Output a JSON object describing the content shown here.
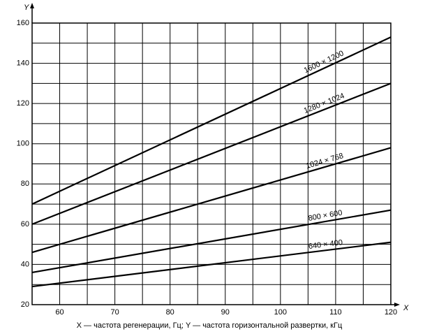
{
  "chart_data": {
    "type": "line",
    "x_axis_label": "X",
    "y_axis_label": "Y",
    "caption": "X — частота регенерации, Гц; Y — частота горизонтальной развертки, кГц",
    "x": [
      55,
      120
    ],
    "series": [
      {
        "name": "1600 × 1200",
        "color": "#000000",
        "values": [
          70,
          153
        ]
      },
      {
        "name": "1280 × 1024",
        "color": "#000000",
        "values": [
          60,
          130
        ]
      },
      {
        "name": "1024 × 768",
        "color": "#000000",
        "values": [
          46,
          98
        ]
      },
      {
        "name": "800 × 600",
        "color": "#000000",
        "values": [
          36,
          67
        ]
      },
      {
        "name": "640 × 400",
        "color": "#000000",
        "values": [
          29,
          51
        ]
      }
    ],
    "xlim": [
      55,
      120
    ],
    "ylim": [
      20,
      160
    ],
    "xticks": [
      60,
      70,
      80,
      90,
      100,
      110,
      120
    ],
    "yticks": [
      20,
      40,
      60,
      80,
      100,
      120,
      140,
      160
    ],
    "xgrid": [
      55,
      60,
      65,
      70,
      75,
      80,
      85,
      90,
      95,
      100,
      105,
      110,
      115,
      120
    ],
    "ygrid": [
      20,
      30,
      40,
      50,
      60,
      70,
      80,
      90,
      100,
      110,
      120,
      130,
      140,
      150,
      160
    ],
    "grid": true
  }
}
